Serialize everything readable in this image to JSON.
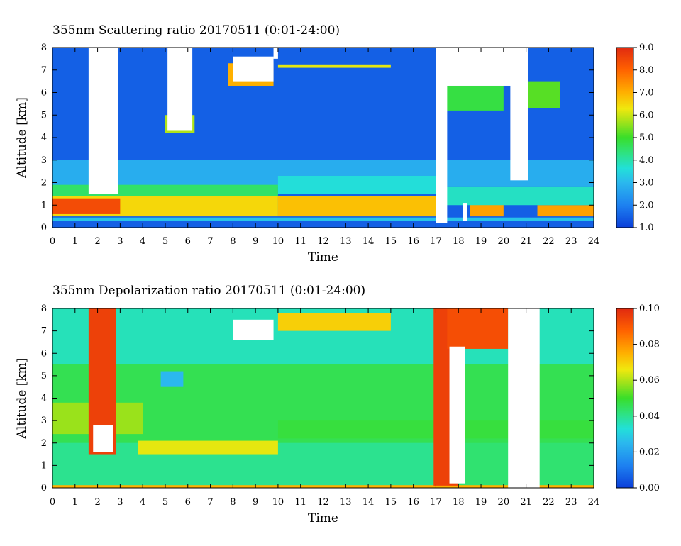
{
  "chart_data": [
    {
      "type": "heatmap",
      "title": "355nm Scattering ratio  20170511 (0:01-24:00)",
      "xlabel": "Time",
      "ylabel": "Altitude [km]",
      "x_ticks": [
        "0",
        "1",
        "2",
        "3",
        "4",
        "5",
        "6",
        "7",
        "8",
        "9",
        "10",
        "11",
        "12",
        "13",
        "14",
        "15",
        "16",
        "17",
        "18",
        "19",
        "20",
        "21",
        "22",
        "23",
        "24"
      ],
      "y_ticks": [
        "0",
        "1",
        "2",
        "3",
        "4",
        "5",
        "6",
        "7",
        "8"
      ],
      "xlim": [
        0,
        24
      ],
      "ylim": [
        0,
        8
      ],
      "colorbar": {
        "min": 1.0,
        "max": 9.0,
        "tick_labels": [
          "1.0",
          "2.0",
          "3.0",
          "4.0",
          "5.0",
          "6.0",
          "7.0",
          "8.0",
          "9.0"
        ],
        "tick_values": [
          1,
          2,
          3,
          4,
          5,
          6,
          7,
          8,
          9
        ]
      },
      "background_value": 1.5,
      "regions": [
        {
          "x": [
            0,
            24
          ],
          "y": [
            3.0,
            8.0
          ],
          "value": 1.5
        },
        {
          "x": [
            0,
            24
          ],
          "y": [
            1.8,
            3.0
          ],
          "value": 2.8
        },
        {
          "x": [
            0,
            10
          ],
          "y": [
            1.4,
            1.9
          ],
          "value": 4.5
        },
        {
          "x": [
            10,
            17
          ],
          "y": [
            1.5,
            2.3
          ],
          "value": 3.6
        },
        {
          "x": [
            0,
            10
          ],
          "y": [
            0.5,
            1.4
          ],
          "value": 6.5
        },
        {
          "x": [
            0,
            3
          ],
          "y": [
            0.6,
            1.3
          ],
          "value": 8.4
        },
        {
          "x": [
            10,
            17
          ],
          "y": [
            0.5,
            1.4
          ],
          "value": 6.8
        },
        {
          "x": [
            18.5,
            20
          ],
          "y": [
            0.5,
            1.1
          ],
          "value": 7.2
        },
        {
          "x": [
            21.5,
            24
          ],
          "y": [
            0.5,
            1.0
          ],
          "value": 7.2
        },
        {
          "x": [
            17,
            24
          ],
          "y": [
            1.0,
            1.8
          ],
          "value": 3.8
        },
        {
          "x": [
            0,
            24
          ],
          "y": [
            0.3,
            0.45
          ],
          "value": 3.2
        },
        {
          "x": [
            10,
            15
          ],
          "y": [
            7.1,
            7.25
          ],
          "value": 6.2
        },
        {
          "x": [
            7.8,
            9.8
          ],
          "y": [
            6.3,
            7.3
          ],
          "value": 7.0
        },
        {
          "x": [
            5.0,
            6.3
          ],
          "y": [
            4.2,
            5.0
          ],
          "value": 5.8
        },
        {
          "x": [
            17,
            20
          ],
          "y": [
            5.2,
            6.3
          ],
          "value": 4.8
        },
        {
          "x": [
            20.5,
            22.5
          ],
          "y": [
            5.3,
            6.5
          ],
          "value": 5.2
        }
      ],
      "missing": [
        {
          "x": [
            1.6,
            2.9
          ],
          "y": [
            1.5,
            8.0
          ]
        },
        {
          "x": [
            5.1,
            6.2
          ],
          "y": [
            4.3,
            8.0
          ]
        },
        {
          "x": [
            17.0,
            17.5
          ],
          "y": [
            0.2,
            8.0
          ]
        },
        {
          "x": [
            17.3,
            20.5
          ],
          "y": [
            6.3,
            8.0
          ]
        },
        {
          "x": [
            20.3,
            21.1
          ],
          "y": [
            2.1,
            8.0
          ]
        },
        {
          "x": [
            8.0,
            9.8
          ],
          "y": [
            6.5,
            7.6
          ]
        },
        {
          "x": [
            9.8,
            10.0
          ],
          "y": [
            7.5,
            8.0
          ]
        },
        {
          "x": [
            18.2,
            18.4
          ],
          "y": [
            0.3,
            1.1
          ]
        }
      ]
    },
    {
      "type": "heatmap",
      "title": "355nm Depolarization ratio  20170511 (0:01-24:00)",
      "xlabel": "Time",
      "ylabel": "Altitude [km]",
      "x_ticks": [
        "0",
        "1",
        "2",
        "3",
        "4",
        "5",
        "6",
        "7",
        "8",
        "9",
        "10",
        "11",
        "12",
        "13",
        "14",
        "15",
        "16",
        "17",
        "18",
        "19",
        "20",
        "21",
        "22",
        "23",
        "24"
      ],
      "y_ticks": [
        "0",
        "1",
        "2",
        "3",
        "4",
        "5",
        "6",
        "7",
        "8"
      ],
      "xlim": [
        0,
        24
      ],
      "ylim": [
        0,
        8
      ],
      "colorbar": {
        "min": 0.0,
        "max": 0.1,
        "tick_labels": [
          "0.00",
          "0.02",
          "0.04",
          "0.06",
          "0.08",
          "0.10"
        ],
        "tick_values": [
          0.0,
          0.02,
          0.04,
          0.06,
          0.08,
          0.1
        ]
      },
      "background_value": 0.043,
      "regions": [
        {
          "x": [
            0,
            24
          ],
          "y": [
            5.5,
            8.0
          ],
          "value": 0.036
        },
        {
          "x": [
            0,
            24
          ],
          "y": [
            2.0,
            5.5
          ],
          "value": 0.046
        },
        {
          "x": [
            0,
            17
          ],
          "y": [
            0.1,
            2.0
          ],
          "value": 0.04
        },
        {
          "x": [
            0,
            4
          ],
          "y": [
            2.4,
            3.8
          ],
          "value": 0.058
        },
        {
          "x": [
            3.8,
            10
          ],
          "y": [
            1.5,
            2.1
          ],
          "value": 0.065
        },
        {
          "x": [
            10,
            24
          ],
          "y": [
            2.2,
            3.0
          ],
          "value": 0.048
        },
        {
          "x": [
            0,
            24
          ],
          "y": [
            0.0,
            0.12
          ],
          "value": 0.075
        },
        {
          "x": [
            1.6,
            2.8
          ],
          "y": [
            1.5,
            8.0
          ],
          "value": 0.095
        },
        {
          "x": [
            16.9,
            18.0
          ],
          "y": [
            0.1,
            8.0
          ],
          "value": 0.095
        },
        {
          "x": [
            17.5,
            20.2
          ],
          "y": [
            6.2,
            8.0
          ],
          "value": 0.092
        },
        {
          "x": [
            10,
            15
          ],
          "y": [
            7.0,
            7.8
          ],
          "value": 0.07
        },
        {
          "x": [
            4.8,
            5.8
          ],
          "y": [
            4.5,
            5.2
          ],
          "value": 0.025
        }
      ],
      "missing": [
        {
          "x": [
            17.6,
            18.3
          ],
          "y": [
            0.2,
            6.3
          ]
        },
        {
          "x": [
            20.2,
            21.6
          ],
          "y": [
            0.0,
            8.0
          ]
        },
        {
          "x": [
            1.8,
            2.7
          ],
          "y": [
            1.6,
            2.8
          ]
        },
        {
          "x": [
            8.0,
            9.8
          ],
          "y": [
            6.6,
            7.5
          ]
        }
      ]
    }
  ]
}
